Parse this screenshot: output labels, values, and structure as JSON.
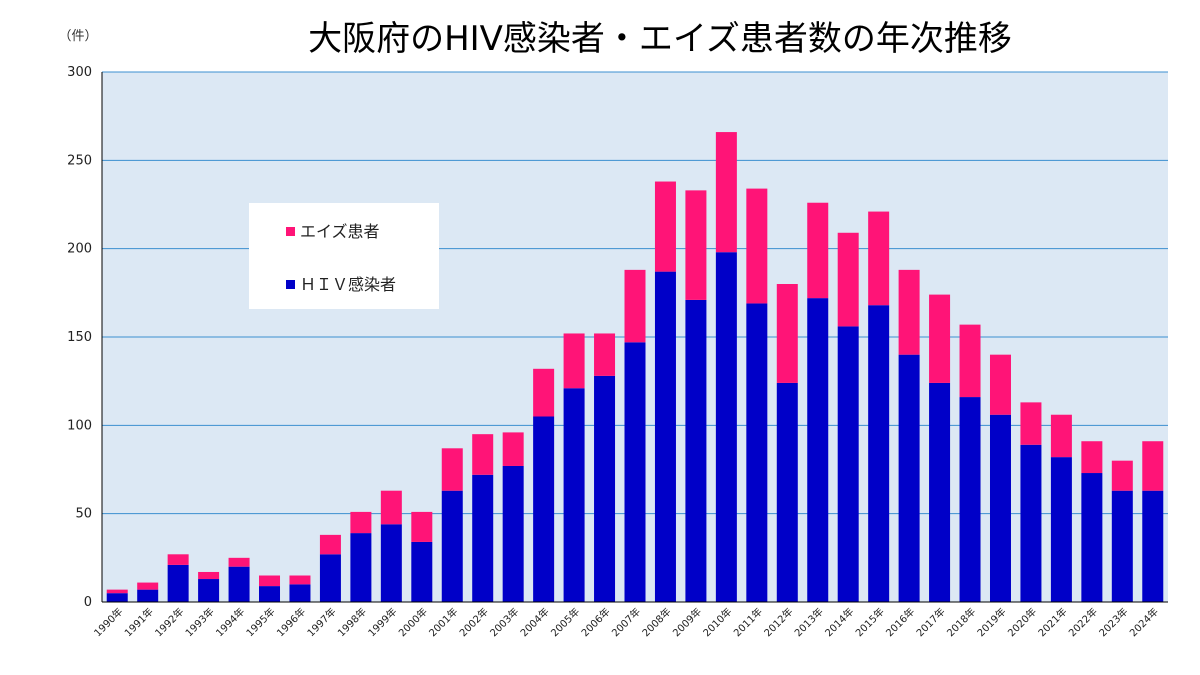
{
  "chart_data": {
    "type": "bar",
    "stacked": true,
    "title": "大阪府のHIV感染者・エイズ患者数の年次推移",
    "ylabel": "（件）",
    "ylim": [
      0,
      300
    ],
    "yticks": [
      0,
      50,
      100,
      150,
      200,
      250,
      300
    ],
    "grid": true,
    "legend_position": "top-left",
    "categories": [
      "1990年",
      "1991年",
      "1992年",
      "1993年",
      "1994年",
      "1995年",
      "1996年",
      "1997年",
      "1998年",
      "1999年",
      "2000年",
      "2001年",
      "2002年",
      "2003年",
      "2004年",
      "2005年",
      "2006年",
      "2007年",
      "2008年",
      "2009年",
      "2010年",
      "2011年",
      "2012年",
      "2013年",
      "2014年",
      "2015年",
      "2016年",
      "2017年",
      "2018年",
      "2019年",
      "2020年",
      "2021年",
      "2022年",
      "2023年",
      "2024年"
    ],
    "series": [
      {
        "name": "ＨＩＶ感染者",
        "color": "#0000c8",
        "values": [
          5,
          7,
          21,
          13,
          20,
          9,
          10,
          27,
          39,
          44,
          34,
          63,
          72,
          77,
          105,
          121,
          128,
          147,
          187,
          171,
          198,
          169,
          124,
          172,
          156,
          168,
          140,
          124,
          116,
          106,
          89,
          82,
          73,
          63,
          63
        ]
      },
      {
        "name": "エイズ患者",
        "color": "#ff1477",
        "values": [
          2,
          4,
          6,
          4,
          5,
          6,
          5,
          11,
          12,
          19,
          17,
          24,
          23,
          19,
          27,
          31,
          24,
          41,
          51,
          62,
          68,
          65,
          56,
          54,
          53,
          53,
          48,
          50,
          41,
          34,
          24,
          24,
          18,
          17,
          28
        ]
      }
    ]
  },
  "legend": [
    {
      "label": "エイズ患者",
      "color": "#ff1477"
    },
    {
      "label": "ＨＩＶ感染者",
      "color": "#0000c8"
    }
  ]
}
